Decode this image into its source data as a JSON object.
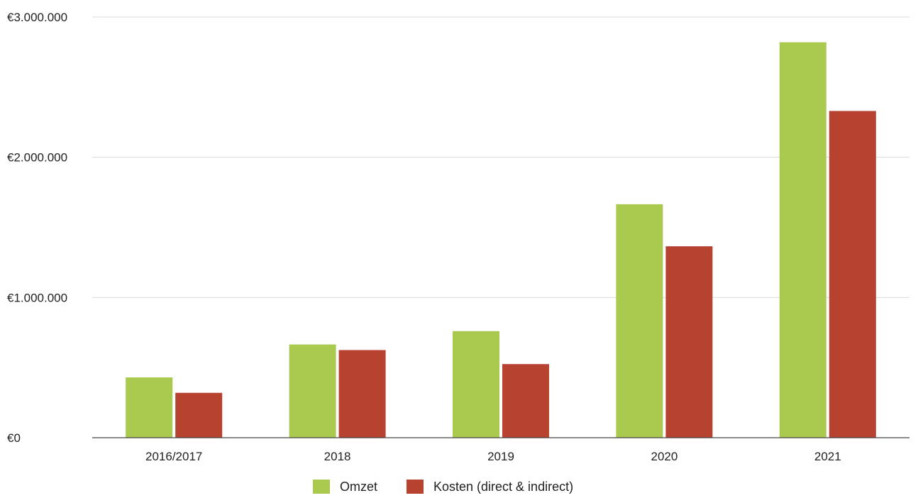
{
  "chart_data": {
    "type": "bar",
    "title": "",
    "xlabel": "",
    "ylabel": "",
    "categories": [
      "2016/2017",
      "2018",
      "2019",
      "2020",
      "2021"
    ],
    "series": [
      {
        "name": "Omzet",
        "color": "#a9c94f",
        "values": [
          430000,
          665000,
          760000,
          1665000,
          2820000
        ]
      },
      {
        "name": "Kosten (direct & indirect)",
        "color": "#b84230",
        "values": [
          320000,
          625000,
          525000,
          1365000,
          2330000
        ]
      }
    ],
    "ylim": [
      0,
      3000000
    ],
    "yticks": [
      0,
      1000000,
      2000000,
      3000000
    ],
    "ytick_labels": [
      "€0",
      "€1.000.000",
      "€2.000.000",
      "€3.000.000"
    ],
    "grid": true,
    "legend_position": "bottom"
  }
}
